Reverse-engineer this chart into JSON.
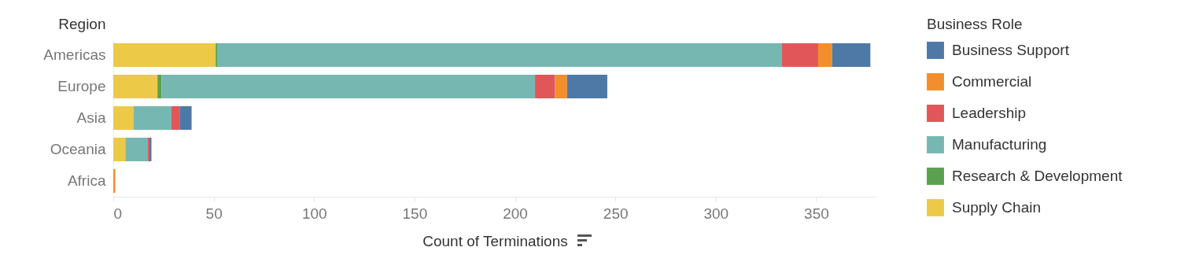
{
  "chart_data": {
    "type": "bar",
    "orientation": "horizontal",
    "stacked": true,
    "xlabel": "Count of Terminations",
    "ylabel": "Region",
    "legend_title": "Business Role",
    "legend": "right",
    "categories": [
      "Americas",
      "Europe",
      "Asia",
      "Oceania",
      "Africa"
    ],
    "series": [
      {
        "name": "Supply Chain",
        "color": "#edc948",
        "values": [
          51,
          22,
          10,
          6,
          null
        ]
      },
      {
        "name": "Research & Development",
        "color": "#59a14f",
        "values": [
          1,
          2,
          null,
          null,
          null
        ]
      },
      {
        "name": "Manufacturing",
        "color": "#76b7b2",
        "values": [
          281,
          186,
          19,
          11,
          null
        ]
      },
      {
        "name": "Leadership",
        "color": "#e15759",
        "values": [
          18,
          10,
          4,
          1,
          null
        ]
      },
      {
        "name": "Commercial",
        "color": "#f28e2b",
        "values": [
          7,
          6,
          null,
          null,
          1
        ]
      },
      {
        "name": "Business Support",
        "color": "#4e79a7",
        "values": [
          19,
          20,
          6,
          1,
          null
        ]
      }
    ],
    "xlim": [
      0,
      380
    ],
    "xticks": [
      0,
      50,
      100,
      150,
      200,
      250,
      300,
      350
    ],
    "grid": false
  }
}
